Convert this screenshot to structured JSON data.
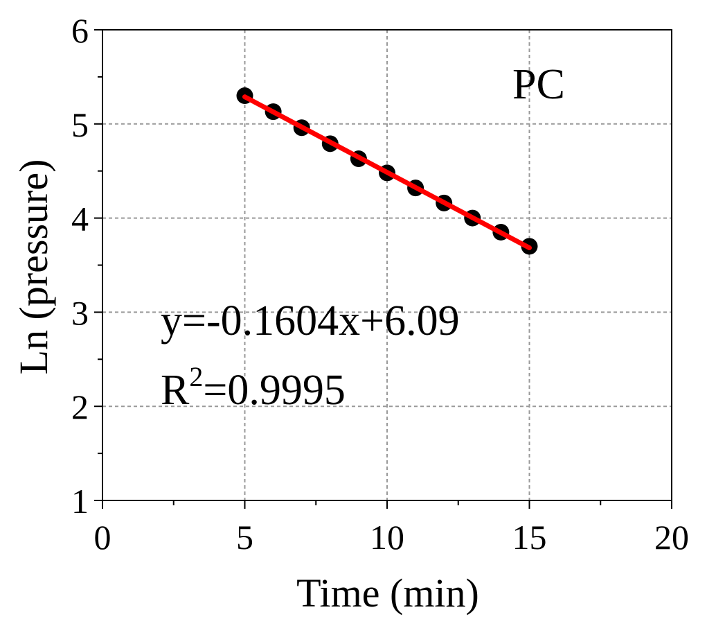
{
  "chart_data": {
    "type": "scatter",
    "title": "",
    "xlabel": "Time (min)",
    "ylabel": "Ln (pressure)",
    "xlim": [
      0,
      20
    ],
    "ylim": [
      1,
      6
    ],
    "x_ticks": [
      0,
      5,
      10,
      15,
      20
    ],
    "y_ticks": [
      1,
      2,
      3,
      4,
      5,
      6
    ],
    "grid": true,
    "series": [
      {
        "x": [
          5,
          6,
          7,
          8,
          9,
          10,
          11,
          12,
          13,
          14,
          15
        ],
        "y": [
          5.3,
          5.13,
          4.96,
          4.79,
          4.63,
          4.48,
          4.32,
          4.16,
          4.0,
          3.85,
          3.7
        ],
        "marker_color": "#000000"
      }
    ],
    "fit_line": {
      "x": [
        5,
        15
      ],
      "y": [
        5.288,
        3.684
      ],
      "color": "#ff0000"
    },
    "annotations": {
      "sample_label": "PC",
      "equation": "y=-0.1604x+6.09",
      "r2_prefix": "R",
      "r2_sup": "2",
      "r2_value": "=0.9995"
    }
  }
}
